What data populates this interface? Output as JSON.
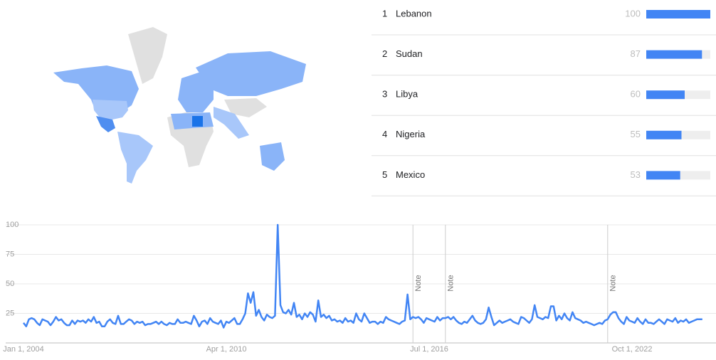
{
  "top_regions": [
    {
      "rank": 1,
      "name": "Lebanon",
      "value": 100
    },
    {
      "rank": 2,
      "name": "Sudan",
      "value": 87
    },
    {
      "rank": 3,
      "name": "Libya",
      "value": 60
    },
    {
      "rank": 4,
      "name": "Nigeria",
      "value": 55
    },
    {
      "rank": 5,
      "name": "Mexico",
      "value": 53
    }
  ],
  "chart_data": {
    "type": "line",
    "color": "#4285f4",
    "grid": true,
    "ylim": [
      0,
      100
    ],
    "yticks": [
      25,
      50,
      75,
      100
    ],
    "categories": [
      "Jan 1, 2004",
      null,
      null,
      null,
      null,
      null,
      null,
      null,
      null,
      null,
      null,
      null,
      null,
      null,
      null,
      null,
      null,
      null,
      null,
      null,
      null,
      null,
      null,
      null,
      null,
      null,
      null,
      null,
      null,
      null,
      null,
      null,
      null,
      null,
      null,
      null,
      null,
      null,
      null,
      null,
      null,
      null,
      null,
      null,
      null,
      null,
      null,
      null,
      null,
      null,
      null,
      null,
      null,
      null,
      null,
      null,
      null,
      null,
      null,
      null,
      null,
      null,
      null,
      null,
      null,
      null,
      null,
      null,
      null,
      null,
      null,
      null,
      null,
      null,
      null,
      "Apr 1, 2010",
      null,
      null,
      null,
      null,
      null,
      null,
      null,
      null,
      null,
      null,
      null,
      null,
      null,
      null,
      null,
      null,
      null,
      null,
      null,
      null,
      null,
      null,
      null,
      null,
      null,
      null,
      null,
      null,
      null,
      null,
      null,
      null,
      null,
      null,
      null,
      null,
      null,
      null,
      null,
      null,
      null,
      null,
      null,
      null,
      null,
      null,
      null,
      null,
      null,
      null,
      null,
      null,
      null,
      null,
      null,
      null,
      null,
      null,
      null,
      null,
      null,
      null,
      null,
      null,
      null,
      null,
      null,
      null,
      null,
      null,
      null,
      null,
      null,
      null,
      "Jul 1, 2016",
      null,
      null,
      null,
      null,
      null,
      null,
      null,
      null,
      null,
      null,
      null,
      null,
      null,
      null,
      null,
      null,
      null,
      null,
      null,
      null,
      null,
      null,
      null,
      null,
      null,
      null,
      null,
      null,
      null,
      null,
      null,
      null,
      null,
      null,
      null,
      null,
      null,
      null,
      null,
      null,
      null,
      null,
      null,
      null,
      null,
      null,
      null,
      null,
      null,
      null,
      null,
      null,
      null,
      null,
      null,
      null,
      null,
      null,
      null,
      null,
      null,
      null,
      null,
      null,
      null,
      null,
      null,
      null,
      null,
      null,
      null,
      null,
      null,
      null,
      "Oct 1, 2022",
      null,
      null,
      null,
      null,
      null,
      null,
      null,
      null,
      null,
      null,
      null,
      null,
      null,
      null,
      null,
      null,
      null,
      null,
      null,
      null,
      null,
      null,
      null,
      null,
      null,
      null
    ],
    "values": [
      17,
      14,
      20,
      21,
      20,
      17,
      15,
      20,
      19,
      18,
      15,
      18,
      22,
      19,
      20,
      17,
      15,
      15,
      19,
      16,
      19,
      18,
      19,
      17,
      20,
      18,
      22,
      17,
      18,
      14,
      14,
      18,
      20,
      17,
      16,
      23,
      16,
      16,
      18,
      20,
      19,
      16,
      18,
      17,
      18,
      15,
      16,
      16,
      17,
      18,
      16,
      18,
      16,
      15,
      17,
      16,
      16,
      20,
      17,
      17,
      18,
      17,
      16,
      23,
      19,
      14,
      18,
      19,
      16,
      21,
      18,
      17,
      16,
      19,
      13,
      18,
      17,
      19,
      21,
      16,
      16,
      20,
      25,
      42,
      34,
      43,
      23,
      28,
      22,
      19,
      24,
      22,
      21,
      23,
      100,
      32,
      26,
      25,
      28,
      24,
      34,
      22,
      24,
      20,
      25,
      22,
      26,
      24,
      18,
      36,
      22,
      24,
      21,
      23,
      19,
      20,
      18,
      19,
      17,
      21,
      18,
      19,
      17,
      25,
      20,
      18,
      25,
      21,
      17,
      18,
      18,
      16,
      18,
      17,
      22,
      20,
      19,
      18,
      17,
      16,
      18,
      19,
      41,
      20,
      22,
      21,
      22,
      20,
      17,
      21,
      20,
      19,
      18,
      22,
      19,
      21,
      21,
      22,
      20,
      22,
      19,
      17,
      16,
      18,
      17,
      20,
      23,
      19,
      17,
      16,
      17,
      20,
      30,
      22,
      15,
      17,
      19,
      17,
      18,
      19,
      20,
      18,
      17,
      16,
      22,
      21,
      19,
      17,
      20,
      32,
      22,
      21,
      20,
      22,
      21,
      31,
      31,
      19,
      23,
      20,
      25,
      21,
      19,
      26,
      21,
      20,
      19,
      17,
      18,
      17,
      16,
      15,
      16,
      17,
      16,
      19,
      20,
      24,
      26,
      26,
      21,
      18,
      16,
      22,
      19,
      18,
      17,
      21,
      18,
      16,
      20,
      17,
      17,
      16,
      18,
      20,
      18,
      16,
      20,
      19,
      18,
      21,
      17,
      19,
      18,
      20,
      17,
      18,
      19,
      20,
      20,
      20
    ],
    "annotations": [
      {
        "text": "Note",
        "category_index": 144
      },
      {
        "text": "Note",
        "category_index": 156
      },
      {
        "text": "Note",
        "category_index": 216
      }
    ]
  }
}
